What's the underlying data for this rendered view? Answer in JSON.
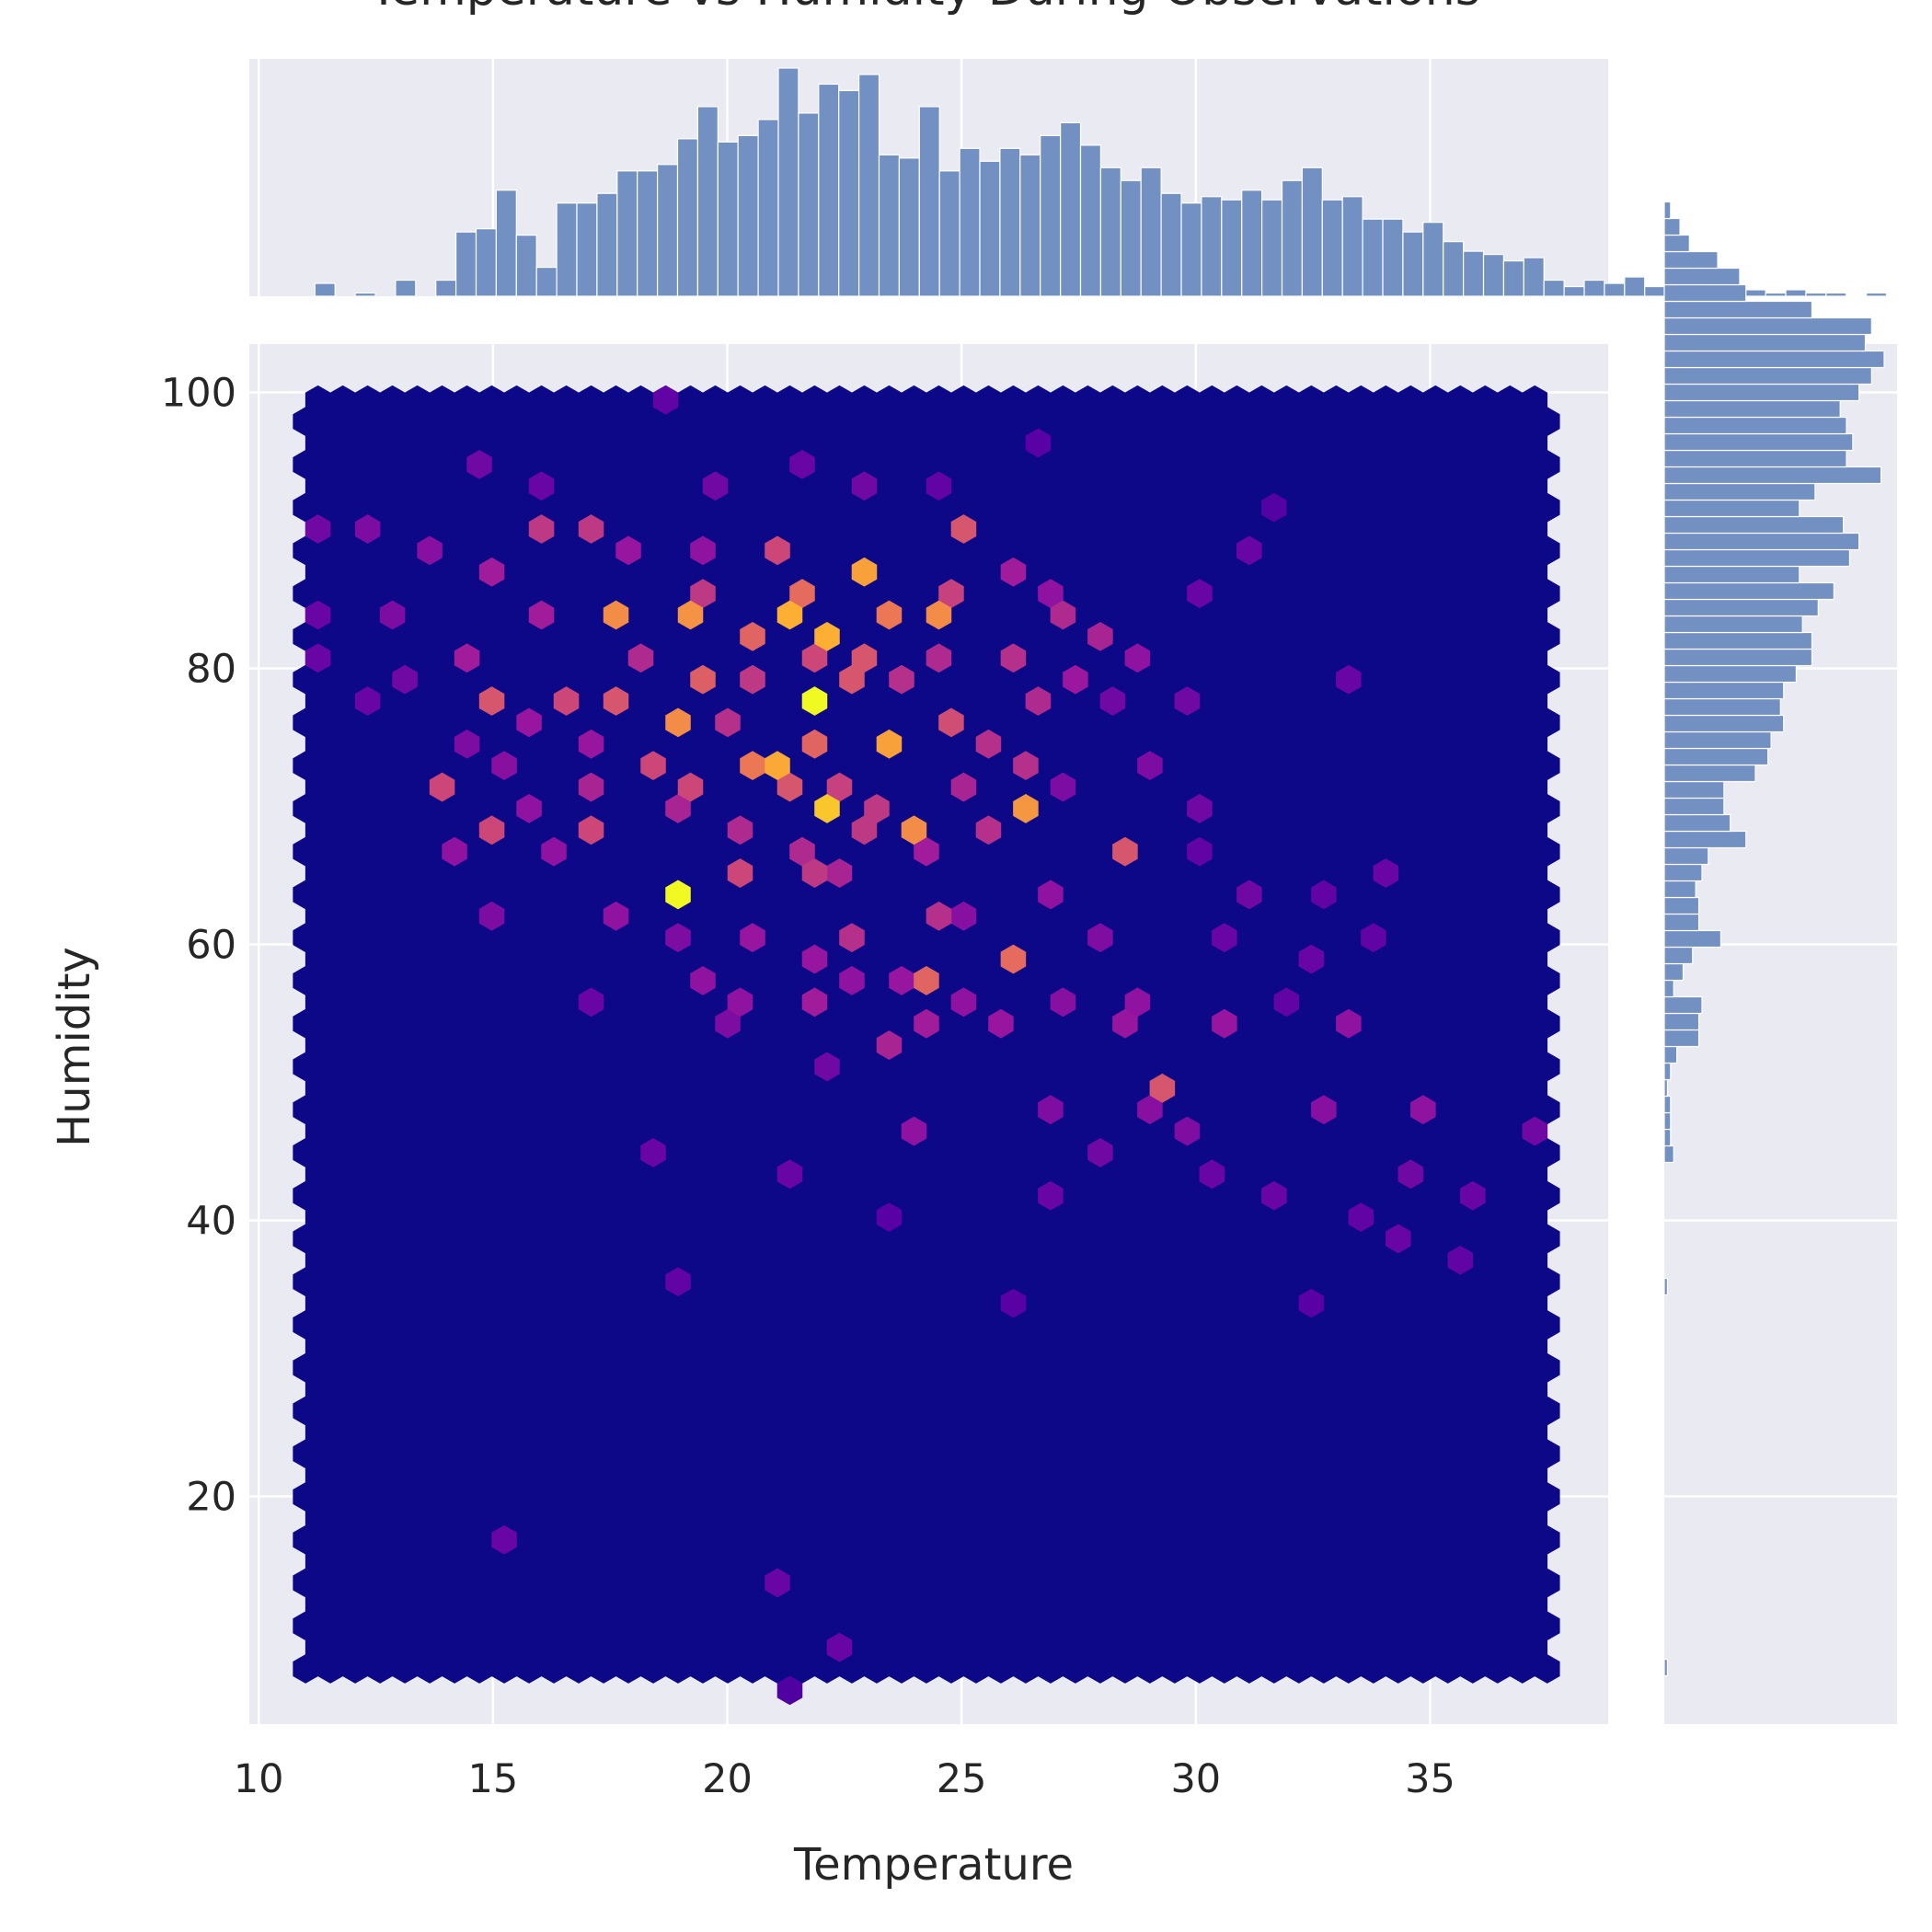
{
  "chart_data": {
    "type": "heatmap",
    "subtype": "hexbin joint plot with marginal histograms",
    "title": "Temperature vs Humidity During Observations",
    "xlabel": "Temperature",
    "ylabel": "Humidity",
    "xlim": [
      9.8,
      38.8
    ],
    "ylim": [
      3.5,
      103.5
    ],
    "x_ticks": [
      10,
      15,
      20,
      25,
      30,
      35
    ],
    "y_ticks": [
      20,
      40,
      60,
      80,
      100
    ],
    "grid": true,
    "colormap": "plasma",
    "colormap_stops": [
      "#0d0887",
      "#5c01a6",
      "#9c179e",
      "#cc4778",
      "#ed7953",
      "#fdb42f",
      "#f0f921"
    ],
    "hexbin_extent": {
      "x": [
        11.0,
        37.5
      ],
      "y": [
        7.5,
        99.0
      ]
    },
    "hexbin_gridsize": 50,
    "hexbins": [
      [
        21.8,
        77.5,
        1.0
      ],
      [
        18.9,
        63.0,
        1.0
      ],
      [
        22.1,
        69.5,
        0.88
      ],
      [
        21.2,
        84.5,
        0.82
      ],
      [
        22.1,
        82.5,
        0.82
      ],
      [
        22.7,
        87.5,
        0.78
      ],
      [
        26.6,
        69.5,
        0.75
      ],
      [
        21.0,
        72.5,
        0.8
      ],
      [
        23.5,
        74.5,
        0.78
      ],
      [
        23.8,
        68.0,
        0.72
      ],
      [
        17.6,
        84.5,
        0.72
      ],
      [
        18.8,
        76.0,
        0.72
      ],
      [
        19.2,
        84.5,
        0.74
      ],
      [
        24.7,
        84.5,
        0.72
      ],
      [
        23.3,
        84.5,
        0.66
      ],
      [
        20.5,
        82.5,
        0.6
      ],
      [
        21.6,
        86.0,
        0.62
      ],
      [
        20.4,
        72.5,
        0.66
      ],
      [
        15.0,
        78.0,
        0.55
      ],
      [
        15.0,
        68.0,
        0.5
      ],
      [
        13.8,
        71.0,
        0.5
      ],
      [
        17.3,
        68.0,
        0.5
      ],
      [
        16.7,
        78.0,
        0.5
      ],
      [
        19.6,
        79.0,
        0.58
      ],
      [
        22.0,
        75.0,
        0.6
      ],
      [
        21.3,
        71.0,
        0.55
      ],
      [
        24.1,
        58.0,
        0.6
      ],
      [
        26.2,
        59.5,
        0.62
      ],
      [
        28.5,
        66.0,
        0.55
      ],
      [
        29.3,
        50.0,
        0.55
      ],
      [
        25.1,
        90.5,
        0.55
      ],
      [
        17.6,
        77.0,
        0.55
      ],
      [
        20.9,
        88.0,
        0.5
      ],
      [
        19.0,
        71.0,
        0.5
      ],
      [
        22.8,
        78.5,
        0.55
      ],
      [
        24.6,
        76.5,
        0.52
      ],
      [
        23.0,
        81.0,
        0.55
      ],
      [
        21.8,
        80.0,
        0.5
      ],
      [
        18.2,
        73.0,
        0.5
      ],
      [
        20.3,
        65.0,
        0.5
      ],
      [
        21.9,
        64.5,
        0.45
      ],
      [
        22.9,
        61.0,
        0.42
      ],
      [
        24.4,
        62.5,
        0.42
      ],
      [
        15.8,
        90.5,
        0.45
      ],
      [
        17.2,
        90.5,
        0.45
      ],
      [
        19.6,
        85.0,
        0.45
      ],
      [
        20.6,
        79.5,
        0.45
      ],
      [
        22.5,
        72.0,
        0.48
      ],
      [
        23.1,
        70.5,
        0.45
      ],
      [
        25.7,
        68.5,
        0.42
      ],
      [
        26.1,
        80.5,
        0.42
      ],
      [
        27.1,
        84.0,
        0.4
      ],
      [
        25.5,
        74.0,
        0.42
      ],
      [
        26.8,
        77.0,
        0.4
      ],
      [
        28.1,
        82.0,
        0.38
      ],
      [
        18.4,
        81.0,
        0.4
      ],
      [
        19.8,
        75.5,
        0.42
      ],
      [
        20.1,
        69.0,
        0.4
      ],
      [
        21.5,
        67.0,
        0.4
      ],
      [
        22.4,
        65.5,
        0.38
      ],
      [
        23.8,
        79.0,
        0.42
      ],
      [
        24.3,
        81.5,
        0.4
      ],
      [
        25.0,
        71.5,
        0.38
      ],
      [
        18.7,
        69.5,
        0.38
      ],
      [
        17.0,
        71.5,
        0.38
      ],
      [
        16.1,
        84.0,
        0.35
      ],
      [
        15.6,
        76.0,
        0.32
      ],
      [
        14.8,
        87.0,
        0.35
      ],
      [
        14.5,
        80.5,
        0.35
      ],
      [
        14.0,
        66.0,
        0.3
      ],
      [
        16.4,
        66.5,
        0.3
      ],
      [
        17.8,
        62.0,
        0.3
      ],
      [
        19.5,
        57.0,
        0.3
      ],
      [
        20.5,
        56.5,
        0.3
      ],
      [
        21.8,
        59.0,
        0.32
      ],
      [
        22.8,
        57.5,
        0.3
      ],
      [
        23.6,
        57.0,
        0.32
      ],
      [
        24.2,
        53.5,
        0.35
      ],
      [
        25.3,
        56.0,
        0.3
      ],
      [
        26.0,
        55.0,
        0.32
      ],
      [
        27.4,
        55.5,
        0.28
      ],
      [
        28.5,
        54.5,
        0.32
      ],
      [
        29.0,
        55.5,
        0.3
      ],
      [
        30.7,
        55.0,
        0.32
      ],
      [
        33.3,
        54.5,
        0.3
      ],
      [
        34.9,
        48.0,
        0.3
      ],
      [
        32.9,
        48.0,
        0.28
      ],
      [
        30.0,
        47.0,
        0.26
      ],
      [
        29.0,
        48.5,
        0.28
      ],
      [
        27.0,
        48.0,
        0.26
      ],
      [
        24.2,
        46.5,
        0.3
      ],
      [
        22.0,
        50.5,
        0.22
      ],
      [
        20.2,
        55.0,
        0.25
      ],
      [
        18.5,
        45.0,
        0.2
      ],
      [
        21.5,
        44.0,
        0.2
      ],
      [
        28.2,
        45.5,
        0.22
      ],
      [
        30.5,
        43.5,
        0.2
      ],
      [
        31.5,
        42.0,
        0.2
      ],
      [
        34.7,
        43.5,
        0.22
      ],
      [
        35.7,
        42.0,
        0.2
      ],
      [
        34.3,
        38.5,
        0.2
      ],
      [
        35.6,
        37.0,
        0.18
      ],
      [
        32.7,
        33.5,
        0.16
      ],
      [
        26.2,
        33.5,
        0.16
      ],
      [
        19.0,
        35.0,
        0.18
      ],
      [
        15.2,
        17.0,
        0.2
      ],
      [
        20.9,
        14.0,
        0.2
      ],
      [
        22.2,
        8.5,
        0.2
      ],
      [
        21.5,
        6.5,
        0.14
      ],
      [
        13.6,
        88.5,
        0.28
      ],
      [
        12.1,
        90.5,
        0.25
      ],
      [
        11.0,
        90.5,
        0.22
      ],
      [
        14.9,
        94.0,
        0.22
      ],
      [
        16.1,
        93.5,
        0.2
      ],
      [
        18.8,
        99.0,
        0.18
      ],
      [
        20.0,
        93.5,
        0.22
      ],
      [
        21.7,
        95.0,
        0.2
      ],
      [
        22.9,
        93.0,
        0.22
      ],
      [
        24.7,
        93.5,
        0.18
      ],
      [
        26.5,
        97.0,
        0.16
      ],
      [
        31.5,
        91.5,
        0.15
      ],
      [
        31.0,
        88.5,
        0.2
      ],
      [
        30.0,
        85.5,
        0.2
      ],
      [
        29.8,
        77.0,
        0.22
      ],
      [
        29.2,
        73.0,
        0.25
      ],
      [
        28.3,
        77.5,
        0.22
      ],
      [
        27.4,
        72.0,
        0.25
      ],
      [
        30.0,
        69.5,
        0.22
      ],
      [
        31.1,
        64.0,
        0.22
      ],
      [
        32.9,
        64.0,
        0.18
      ],
      [
        34.0,
        64.5,
        0.2
      ],
      [
        33.8,
        61.0,
        0.18
      ],
      [
        32.5,
        58.5,
        0.2
      ],
      [
        31.8,
        56.0,
        0.18
      ],
      [
        30.5,
        60.0,
        0.2
      ],
      [
        26.8,
        63.0,
        0.3
      ],
      [
        27.8,
        60.0,
        0.26
      ],
      [
        25.2,
        62.0,
        0.28
      ],
      [
        15.0,
        61.5,
        0.25
      ],
      [
        17.0,
        56.5,
        0.2
      ],
      [
        37.3,
        46.5,
        0.22
      ],
      [
        33.5,
        40.0,
        0.18
      ],
      [
        27.0,
        42.0,
        0.2
      ],
      [
        23.6,
        40.0,
        0.16
      ],
      [
        25.0,
        86.0,
        0.48
      ],
      [
        26.0,
        87.0,
        0.35
      ],
      [
        27.6,
        79.0,
        0.33
      ],
      [
        28.9,
        80.0,
        0.3
      ],
      [
        27.0,
        86.0,
        0.3
      ],
      [
        19.3,
        88.5,
        0.3
      ],
      [
        17.9,
        88.5,
        0.32
      ],
      [
        12.9,
        84.5,
        0.25
      ],
      [
        11.1,
        84.0,
        0.2
      ],
      [
        11.4,
        80.5,
        0.2
      ],
      [
        12.1,
        77.5,
        0.2
      ],
      [
        13.2,
        79.0,
        0.22
      ],
      [
        15.9,
        70.0,
        0.3
      ],
      [
        16.9,
        74.0,
        0.32
      ],
      [
        15.5,
        73.5,
        0.28
      ],
      [
        14.3,
        74.5,
        0.25
      ],
      [
        31.4,
        89.0,
        0.18
      ],
      [
        33.0,
        79.0,
        0.2
      ],
      [
        30.3,
        67.0,
        0.18
      ],
      [
        26.3,
        73.0,
        0.42
      ],
      [
        24.5,
        66.0,
        0.35
      ],
      [
        22.7,
        68.5,
        0.45
      ],
      [
        20.6,
        61.0,
        0.32
      ],
      [
        19.2,
        60.5,
        0.25
      ],
      [
        22.0,
        56.0,
        0.35
      ],
      [
        23.7,
        53.0,
        0.38
      ]
    ],
    "hist_x": {
      "bin_edges_start": 11.2,
      "bin_width": 0.43,
      "counts": [
        4,
        0,
        1,
        0,
        5,
        0,
        5,
        20,
        21,
        33,
        19,
        9,
        29,
        29,
        32,
        39,
        39,
        41,
        49,
        59,
        48,
        50,
        55,
        71,
        57,
        66,
        64,
        69,
        44,
        43,
        59,
        39,
        46,
        42,
        46,
        44,
        50,
        54,
        47,
        40,
        36,
        40,
        32,
        29,
        31,
        30,
        33,
        30,
        36,
        40,
        30,
        31,
        24,
        24,
        20,
        23,
        17,
        14,
        13,
        11,
        12,
        5,
        3,
        5,
        4,
        6,
        3,
        3,
        5,
        2,
        3,
        2,
        1,
        2,
        1,
        1,
        0,
        1
      ]
    },
    "hist_y": {
      "bin_edges_start": 7.0,
      "bin_width": 1.2,
      "counts": [
        1,
        0,
        0,
        0,
        0,
        0,
        0,
        0,
        0,
        0,
        0,
        0,
        0,
        0,
        0,
        0,
        0,
        0,
        0,
        0,
        0,
        0,
        0,
        1,
        0,
        0,
        0,
        0,
        0,
        0,
        0,
        3,
        2,
        2,
        2,
        1,
        2,
        4,
        11,
        11,
        12,
        3,
        6,
        9,
        18,
        11,
        11,
        10,
        12,
        14,
        26,
        21,
        19,
        19,
        29,
        33,
        34,
        38,
        37,
        38,
        42,
        47,
        47,
        44,
        49,
        54,
        43,
        59,
        62,
        57,
        43,
        48,
        69,
        58,
        60,
        58,
        56,
        62,
        66,
        70,
        64,
        66,
        47,
        26,
        24,
        17,
        8,
        5,
        2,
        0,
        0,
        0,
        0,
        0,
        0,
        0,
        0,
        0,
        0,
        0,
        0,
        0,
        0,
        0,
        0
      ]
    }
  }
}
